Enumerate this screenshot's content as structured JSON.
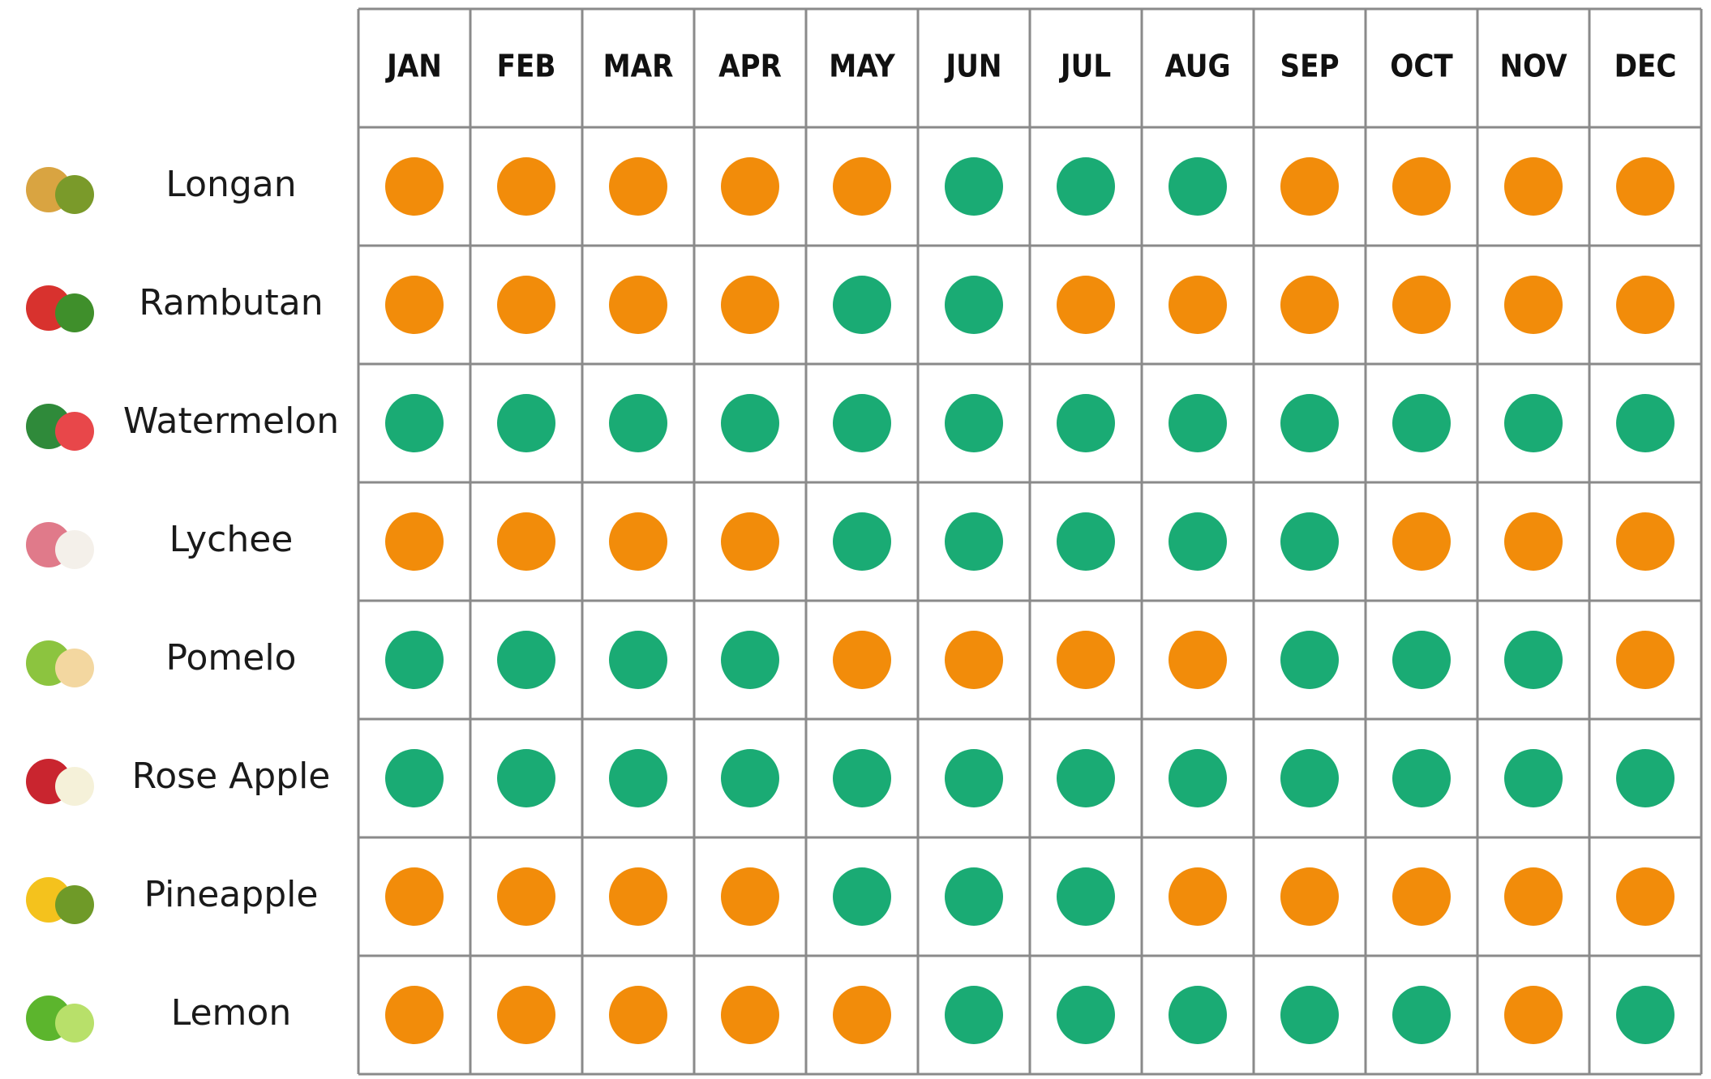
{
  "months": [
    "JAN",
    "FEB",
    "MAR",
    "APR",
    "MAY",
    "JUN",
    "JUL",
    "AUG",
    "SEP",
    "OCT",
    "NOV",
    "DEC"
  ],
  "rows": [
    {
      "fruit": "Longan",
      "cells": [
        "#f28c0a",
        "#f28c0a",
        "#f28c0a",
        "#f28c0a",
        "#f28c0a",
        "#1aab74",
        "#1aab74",
        "#1aab74",
        "#f28c0a",
        "#f28c0a",
        "#f28c0a",
        "#f28c0a"
      ]
    },
    {
      "fruit": "Rambutan",
      "cells": [
        "#f28c0a",
        "#f28c0a",
        "#f28c0a",
        "#f28c0a",
        "#1aab74",
        "#1aab74",
        "#f28c0a",
        "#f28c0a",
        "#f28c0a",
        "#f28c0a",
        "#f28c0a",
        "#f28c0a"
      ]
    },
    {
      "fruit": "Watermelon",
      "cells": [
        "#1aab74",
        "#1aab74",
        "#1aab74",
        "#1aab74",
        "#1aab74",
        "#1aab74",
        "#1aab74",
        "#1aab74",
        "#1aab74",
        "#1aab74",
        "#1aab74",
        "#1aab74"
      ]
    },
    {
      "fruit": "Lychee",
      "cells": [
        "#f28c0a",
        "#f28c0a",
        "#f28c0a",
        "#f28c0a",
        "#1aab74",
        "#1aab74",
        "#1aab74",
        "#1aab74",
        "#1aab74",
        "#f28c0a",
        "#f28c0a",
        "#f28c0a"
      ]
    },
    {
      "fruit": "Pomelo",
      "cells": [
        "#1aab74",
        "#1aab74",
        "#1aab74",
        "#1aab74",
        "#f28c0a",
        "#f28c0a",
        "#f28c0a",
        "#f28c0a",
        "#1aab74",
        "#1aab74",
        "#1aab74",
        "#f28c0a"
      ]
    },
    {
      "fruit": "Rose Apple",
      "cells": [
        "#1aab74",
        "#1aab74",
        "#1aab74",
        "#1aab74",
        "#1aab74",
        "#1aab74",
        "#1aab74",
        "#1aab74",
        "#1aab74",
        "#1aab74",
        "#1aab74",
        "#1aab74"
      ]
    },
    {
      "fruit": "Pineapple",
      "cells": [
        "#f28c0a",
        "#f28c0a",
        "#f28c0a",
        "#f28c0a",
        "#1aab74",
        "#1aab74",
        "#1aab74",
        "#f28c0a",
        "#f28c0a",
        "#f28c0a",
        "#f28c0a",
        "#f28c0a"
      ]
    },
    {
      "fruit": "Lemon",
      "cells": [
        "#f28c0a",
        "#f28c0a",
        "#f28c0a",
        "#f28c0a",
        "#f28c0a",
        "#1aab74",
        "#1aab74",
        "#1aab74",
        "#1aab74",
        "#1aab74",
        "#f28c0a",
        "#1aab74"
      ]
    }
  ]
}
